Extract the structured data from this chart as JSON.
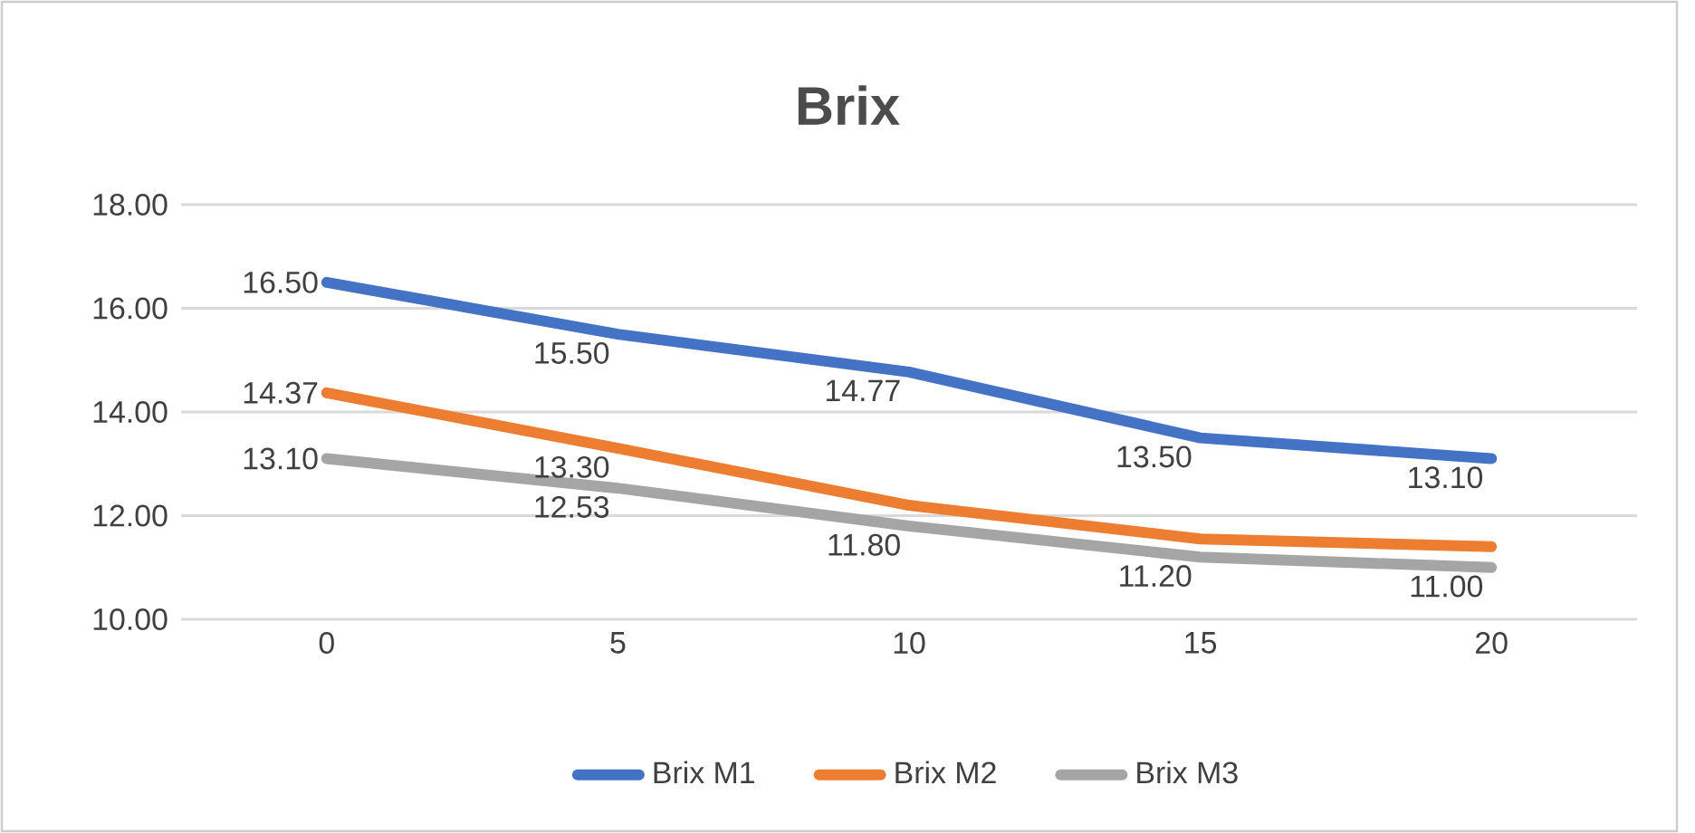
{
  "chart_data": {
    "type": "line",
    "title": "Brix",
    "categories": [
      "0",
      "5",
      "10",
      "15",
      "20"
    ],
    "ylim": [
      10,
      18
    ],
    "yticks": [
      {
        "value": 10,
        "label": "10.00"
      },
      {
        "value": 12,
        "label": "12.00"
      },
      {
        "value": 14,
        "label": "14.00"
      },
      {
        "value": 16,
        "label": "16.00"
      },
      {
        "value": 18,
        "label": "18.00"
      }
    ],
    "grid": "y",
    "legend": "bottom",
    "series": [
      {
        "name": "Brix M1",
        "color": "#4472c4",
        "values": [
          16.5,
          15.5,
          14.77,
          13.5,
          13.1
        ],
        "value_labels": [
          "16.50",
          "15.50",
          "14.77",
          "13.50",
          "13.10"
        ]
      },
      {
        "name": "Brix M2",
        "color": "#ed7d31",
        "values": [
          14.37,
          13.3,
          12.2,
          11.55,
          11.4
        ],
        "value_labels": [
          "14.37",
          "13.30",
          null,
          null,
          null
        ]
      },
      {
        "name": "Brix M3",
        "color": "#a5a5a5",
        "values": [
          13.1,
          12.53,
          11.8,
          11.2,
          11.0
        ],
        "value_labels": [
          "13.10",
          "12.53",
          "11.80",
          "11.20",
          "11.00"
        ]
      }
    ]
  }
}
